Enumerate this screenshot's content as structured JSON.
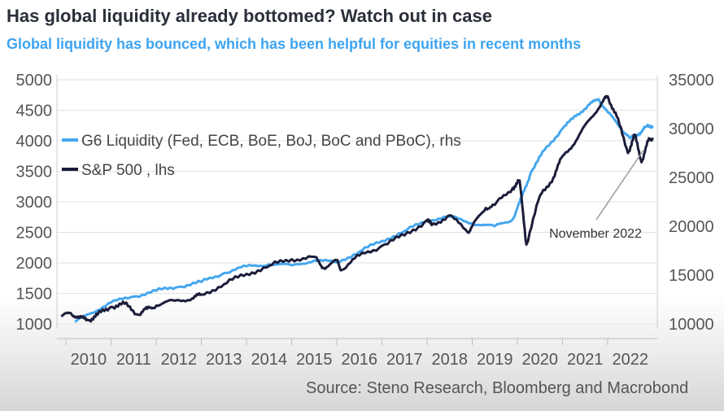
{
  "header": {
    "title": "Has global liquidity already bottomed? Watch out in case",
    "subtitle": "Global liquidity has bounced, which has been helpful for equities in recent months"
  },
  "footer": {
    "source": "Source: Steno Research, Bloomberg and Macrobond"
  },
  "colors": {
    "liquidity": "#45a7ef",
    "sp500": "#1b1d3a",
    "grid": "#e2e2e2",
    "subtitle": "#3da4f0"
  },
  "chart_data": {
    "type": "line",
    "title": "Has global liquidity already bottomed? Watch out in case",
    "subtitle": "Global liquidity has bounced, which has been helpful for equities in recent months",
    "x_ticks": [
      "2010",
      "2011",
      "2012",
      "2013",
      "2014",
      "2015",
      "2016",
      "2017",
      "2018",
      "2019",
      "2020",
      "2021",
      "2022"
    ],
    "xlim": [
      2009.8,
      2023.1
    ],
    "y_left": {
      "label": "lhs",
      "ylim": [
        1000,
        5000
      ],
      "ticks": [
        "1000",
        "1500",
        "2000",
        "2500",
        "3000",
        "3500",
        "4000",
        "4500",
        "5000"
      ]
    },
    "y_right": {
      "label": "rhs",
      "ylim": [
        10000,
        35000
      ],
      "ticks": [
        "10000",
        "15000",
        "20000",
        "25000",
        "30000",
        "35000"
      ]
    },
    "grid": true,
    "legend_position": "top-left",
    "series": [
      {
        "name": "G6 Liquidity (Fed, ECB, BoE, BoJ, BoC and PBoC), rhs",
        "axis": "right",
        "x": [
          2010.2,
          2010.5,
          2011.0,
          2011.5,
          2012.0,
          2012.5,
          2013.0,
          2013.5,
          2014.0,
          2014.5,
          2015.0,
          2015.5,
          2016.0,
          2016.5,
          2017.0,
          2017.5,
          2018.0,
          2018.5,
          2019.0,
          2019.5,
          2019.9,
          2020.1,
          2020.3,
          2020.6,
          2021.0,
          2021.3,
          2021.6,
          2021.8,
          2022.0,
          2022.3,
          2022.5,
          2022.7,
          2022.85,
          2023.0
        ],
        "y": [
          10200,
          11000,
          12200,
          12800,
          13400,
          13800,
          14300,
          15200,
          15900,
          16100,
          16000,
          16500,
          16300,
          17400,
          18500,
          19500,
          20600,
          21000,
          20300,
          20000,
          20700,
          23000,
          25500,
          27800,
          30000,
          31300,
          32500,
          33000,
          31700,
          30000,
          29000,
          29500,
          30200,
          30300
        ]
      },
      {
        "name": "S&P 500 , lhs",
        "axis": "left",
        "x": [
          2009.9,
          2010.1,
          2010.3,
          2010.5,
          2010.7,
          2011.0,
          2011.3,
          2011.6,
          2011.8,
          2012.0,
          2012.4,
          2012.8,
          2013.0,
          2013.5,
          2014.0,
          2014.5,
          2015.0,
          2015.5,
          2015.7,
          2016.0,
          2016.1,
          2016.5,
          2017.0,
          2017.5,
          2018.0,
          2018.1,
          2018.5,
          2018.9,
          2019.0,
          2019.3,
          2019.5,
          2019.9,
          2020.05,
          2020.2,
          2020.5,
          2020.8,
          2021.0,
          2021.3,
          2021.6,
          2021.9,
          2022.0,
          2022.2,
          2022.45,
          2022.6,
          2022.75,
          2022.9,
          2023.0
        ],
        "y": [
          1120,
          1180,
          1100,
          1060,
          1150,
          1280,
          1330,
          1150,
          1250,
          1300,
          1380,
          1420,
          1480,
          1650,
          1820,
          1950,
          2060,
          2100,
          1920,
          2040,
          1880,
          2120,
          2280,
          2450,
          2700,
          2620,
          2780,
          2500,
          2600,
          2900,
          2950,
          3230,
          3350,
          2300,
          3100,
          3400,
          3750,
          4000,
          4350,
          4650,
          4730,
          4400,
          3800,
          4100,
          3650,
          4000,
          4050
        ]
      }
    ],
    "annotations": [
      {
        "text": "November 2022",
        "x": 2022.9,
        "y_left": 3950
      }
    ]
  }
}
